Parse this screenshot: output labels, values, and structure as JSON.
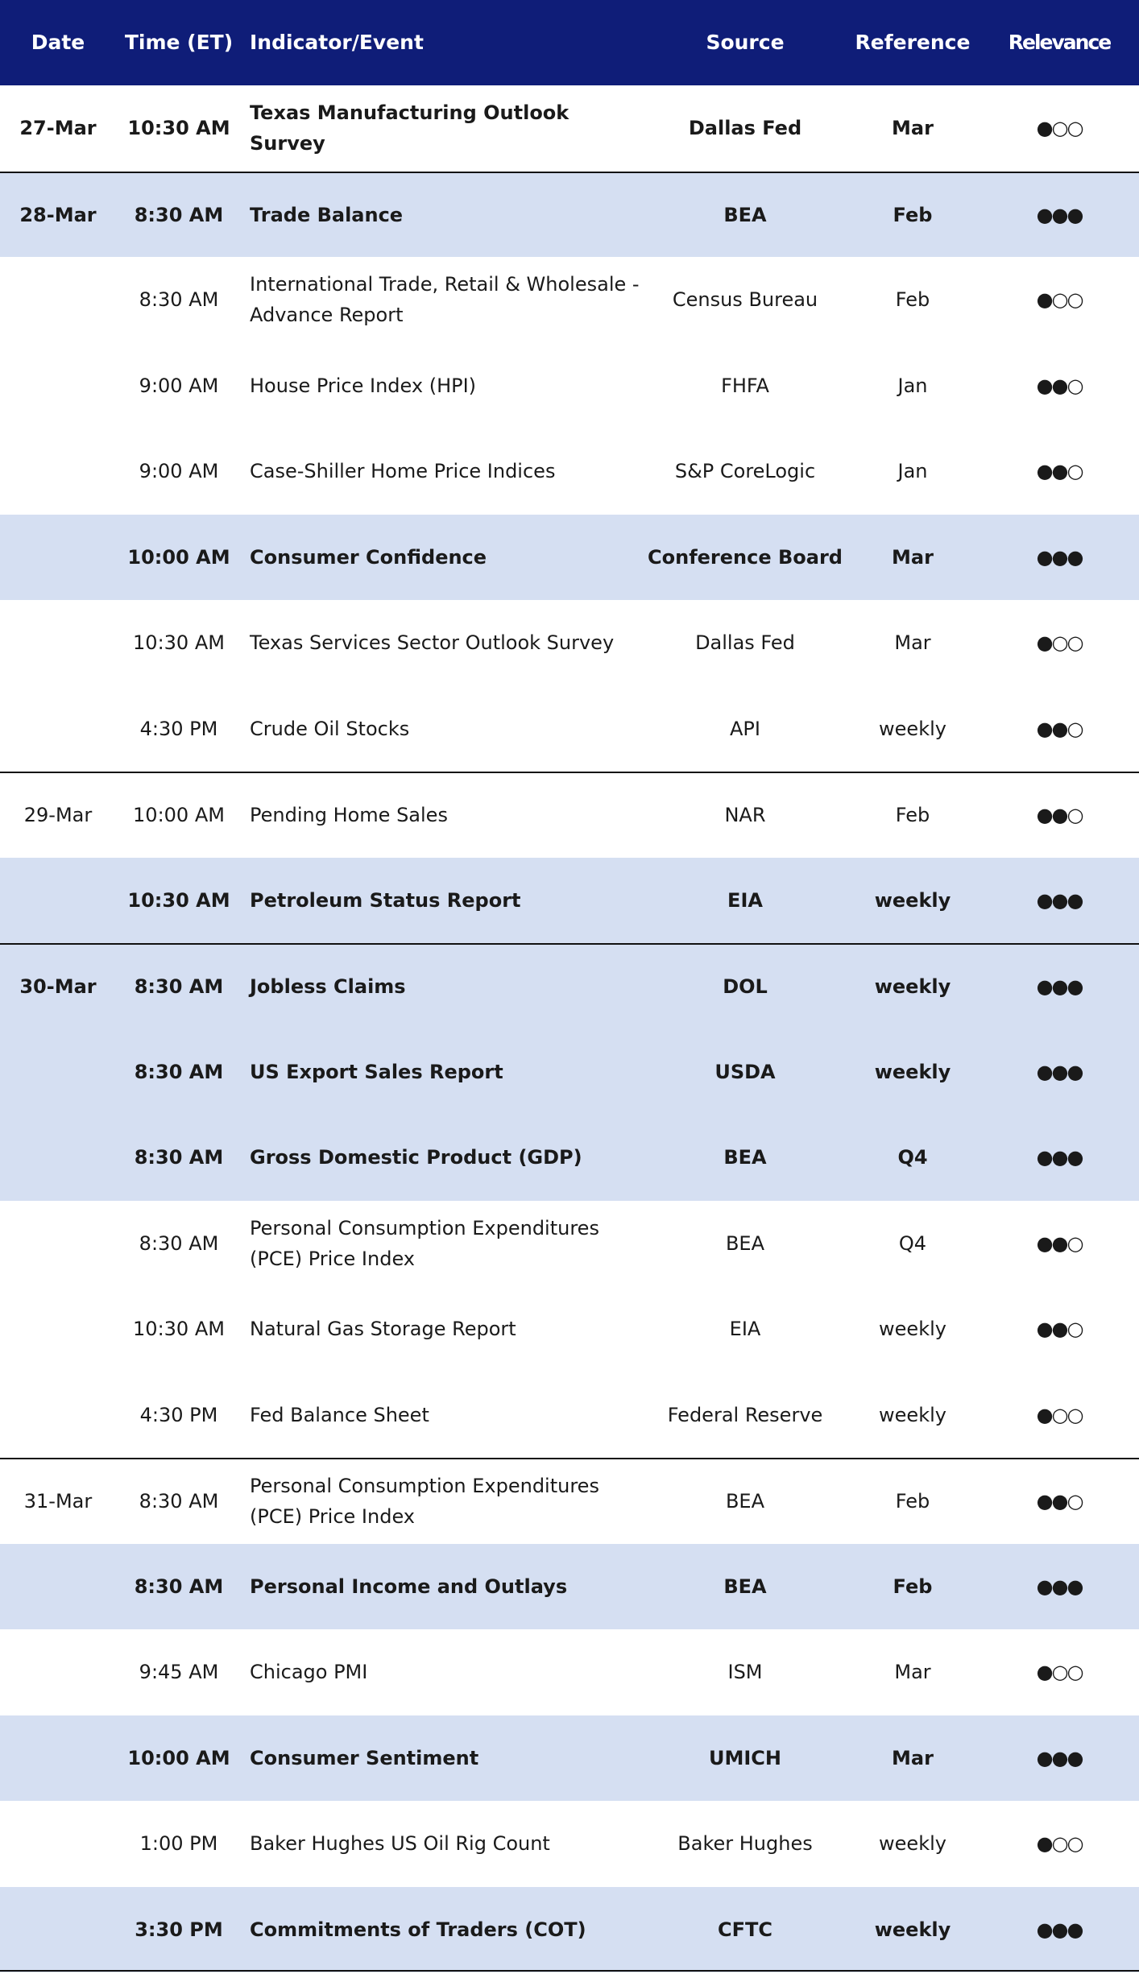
{
  "table": {
    "header": [
      "Date",
      "Time (ET)",
      "Indicator/Event",
      "Source",
      "Reference",
      "Relevance"
    ],
    "rows": [
      {
        "date": "27-Mar",
        "time": "10:30 AM",
        "event": "Texas Manufacturing Outlook Survey",
        "source": "Dallas Fed",
        "reference": "Mar",
        "relevance": "●○○",
        "highlight": false,
        "bold": true
      },
      {
        "date": "28-Mar",
        "time": "8:30 AM",
        "event": "Trade Balance",
        "source": "BEA",
        "reference": "Feb",
        "relevance": "●●●",
        "highlight": true,
        "bold": true
      },
      {
        "date": null,
        "time": "8:30 AM",
        "event": "International Trade, Retail & Wholesale - Advance Report",
        "source": "Census Bureau",
        "reference": "Feb",
        "relevance": "●○○",
        "highlight": false,
        "bold": false
      },
      {
        "date": null,
        "time": "9:00 AM",
        "event": "House Price Index (HPI)",
        "source": "FHFA",
        "reference": "Jan",
        "relevance": "●●○",
        "highlight": false,
        "bold": false
      },
      {
        "date": null,
        "time": "9:00 AM",
        "event": "Case-Shiller Home Price Indices",
        "source": "S&P CoreLogic",
        "reference": "Jan",
        "relevance": "●●○",
        "highlight": false,
        "bold": false
      },
      {
        "date": null,
        "time": "10:00 AM",
        "event": "Consumer Confidence",
        "source": "Conference Board",
        "reference": "Mar",
        "relevance": "●●●",
        "highlight": true,
        "bold": true
      },
      {
        "date": null,
        "time": "10:30 AM",
        "event": "Texas Services Sector Outlook Survey",
        "source": "Dallas Fed",
        "reference": "Mar",
        "relevance": "●○○",
        "highlight": false,
        "bold": false
      },
      {
        "date": null,
        "time": "4:30 PM",
        "event": "Crude Oil Stocks",
        "source": "API",
        "reference": "weekly",
        "relevance": "●●○",
        "highlight": false,
        "bold": false
      },
      {
        "date": "29-Mar",
        "time": "10:00 AM",
        "event": "Pending Home Sales",
        "source": "NAR",
        "reference": "Feb",
        "relevance": "●●○",
        "highlight": false,
        "bold": false
      },
      {
        "date": null,
        "time": "10:30 AM",
        "event": "Petroleum Status Report",
        "source": "EIA",
        "reference": "weekly",
        "relevance": "●●●",
        "highlight": true,
        "bold": true
      },
      {
        "date": "30-Mar",
        "time": "8:30 AM",
        "event": "Jobless Claims",
        "source": "DOL",
        "reference": "weekly",
        "relevance": "●●●",
        "highlight": true,
        "bold": true
      },
      {
        "date": null,
        "time": "8:30 AM",
        "event": "US Export Sales Report",
        "source": "USDA",
        "reference": "weekly",
        "relevance": "●●●",
        "highlight": true,
        "bold": true
      },
      {
        "date": null,
        "time": "8:30 AM",
        "event": "Gross Domestic Product (GDP)",
        "source": "BEA",
        "reference": "Q4",
        "relevance": "●●●",
        "highlight": true,
        "bold": true
      },
      {
        "date": null,
        "time": "8:30 AM",
        "event": "Personal Consumption Expenditures (PCE) Price Index",
        "source": "BEA",
        "reference": "Q4",
        "relevance": "●●○",
        "highlight": false,
        "bold": false
      },
      {
        "date": null,
        "time": "10:30 AM",
        "event": "Natural Gas Storage Report",
        "source": "EIA",
        "reference": "weekly",
        "relevance": "●●○",
        "highlight": false,
        "bold": false
      },
      {
        "date": null,
        "time": "4:30 PM",
        "event": "Fed Balance Sheet",
        "source": "Federal Reserve",
        "reference": "weekly",
        "relevance": "●○○",
        "highlight": false,
        "bold": false
      },
      {
        "date": "31-Mar",
        "time": "8:30 AM",
        "event": "Personal Consumption Expenditures (PCE) Price Index",
        "source": "BEA",
        "reference": "Feb",
        "relevance": "●●○",
        "highlight": false,
        "bold": false
      },
      {
        "date": null,
        "time": "8:30 AM",
        "event": "Personal Income and Outlays",
        "source": "BEA",
        "reference": "Feb",
        "relevance": "●●●",
        "highlight": true,
        "bold": true
      },
      {
        "date": null,
        "time": "9:45 AM",
        "event": "Chicago PMI",
        "source": "ISM",
        "reference": "Mar",
        "relevance": "●○○",
        "highlight": false,
        "bold": false
      },
      {
        "date": null,
        "time": "10:00 AM",
        "event": "Consumer Sentiment",
        "source": "UMICH",
        "reference": "Mar",
        "relevance": "●●●",
        "highlight": true,
        "bold": true
      },
      {
        "date": null,
        "time": "1:00 PM",
        "event": "Baker Hughes US Oil Rig Count",
        "source": "Baker Hughes",
        "reference": "weekly",
        "relevance": "●○○",
        "highlight": false,
        "bold": false
      },
      {
        "date": null,
        "time": "3:30 PM",
        "event": "Commitments of Traders (COT)",
        "source": "CFTC",
        "reference": "weekly",
        "relevance": "●●●",
        "highlight": true,
        "bold": true
      }
    ]
  }
}
